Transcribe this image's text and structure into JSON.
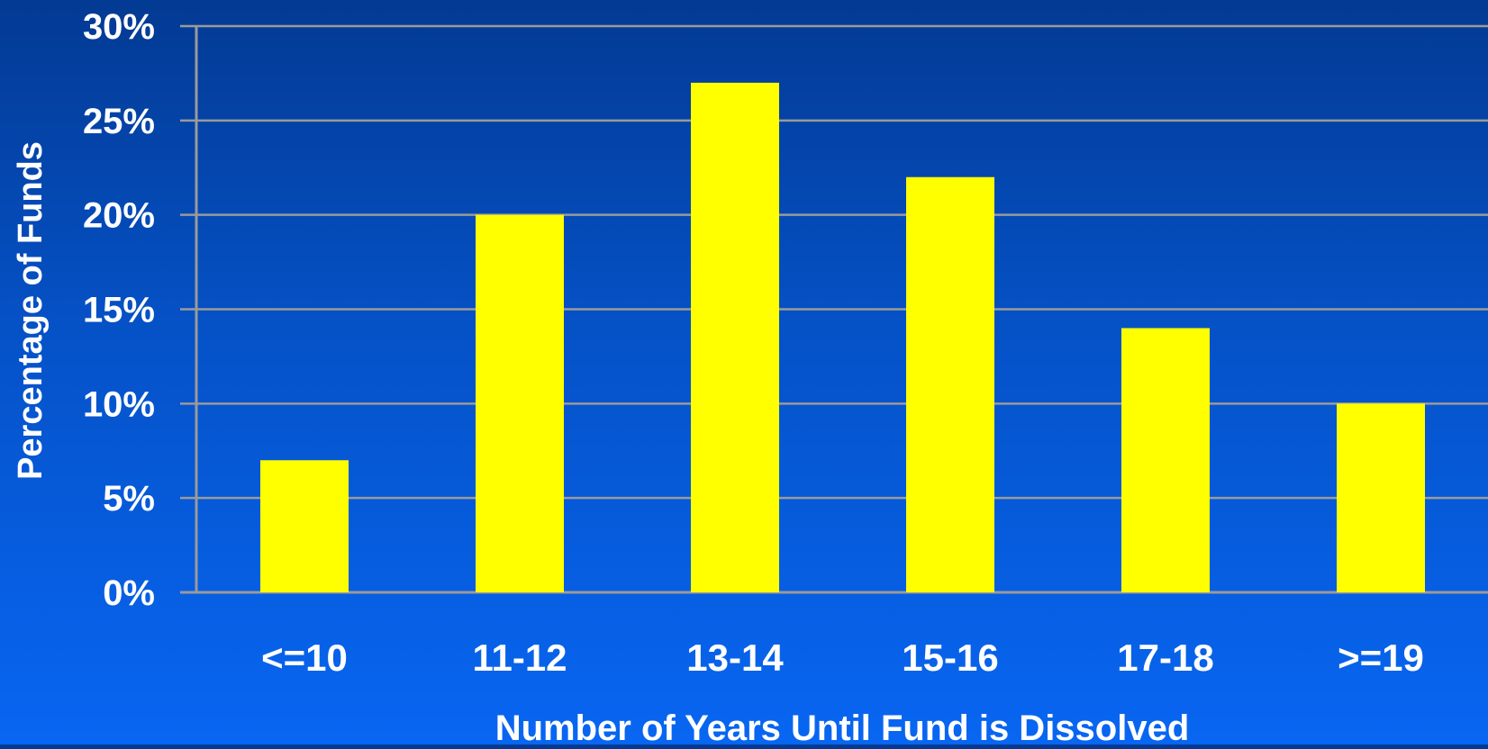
{
  "chart_data": {
    "type": "bar",
    "title": "",
    "xlabel": "Number of Years Until Fund is Dissolved",
    "ylabel": "Percentage of Funds",
    "categories": [
      "<=10",
      "11-12",
      "13-14",
      "15-16",
      "17-18",
      ">=19"
    ],
    "values": [
      7,
      20,
      27,
      22,
      14,
      10
    ],
    "yticks": [
      "0%",
      "5%",
      "10%",
      "15%",
      "20%",
      "25%",
      "30%"
    ],
    "ylim": [
      0,
      30
    ],
    "grid": true,
    "legend": "none",
    "colors": {
      "bar": "#ffff00",
      "grid": "#9a9a9a",
      "text": "#ffffff"
    }
  }
}
